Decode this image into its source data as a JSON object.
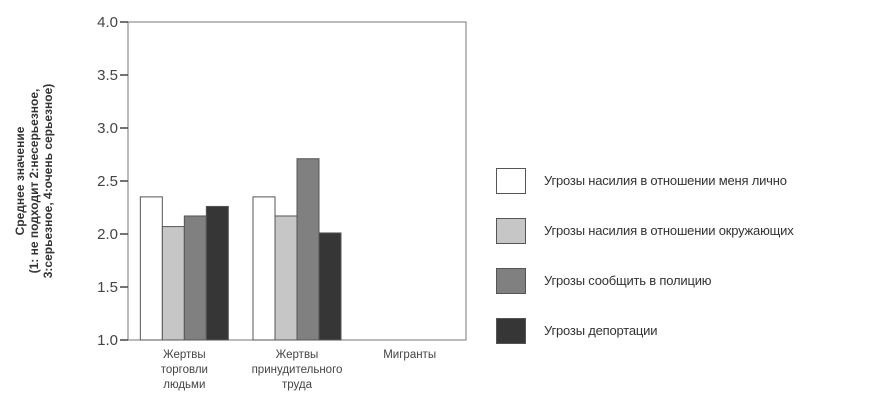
{
  "chart_data": {
    "type": "bar",
    "categories": [
      [
        "Жертвы",
        "торговли",
        "людьми"
      ],
      [
        "Жертвы",
        "принудительного",
        "труда"
      ],
      [
        "Мигранты"
      ]
    ],
    "series": [
      {
        "name": "Угрозы насилия в отношении меня лично",
        "color": "#ffffff",
        "values": [
          2.35,
          2.35,
          null
        ]
      },
      {
        "name": "Угрозы насилия в отношении окружающих",
        "color": "#c6c6c6",
        "values": [
          2.07,
          2.17,
          null
        ]
      },
      {
        "name": "Угрозы сообщить в полицию",
        "color": "#808080",
        "values": [
          2.17,
          2.71,
          null
        ]
      },
      {
        "name": "Угрозы депортации",
        "color": "#363636",
        "values": [
          2.26,
          2.01,
          null
        ]
      }
    ],
    "ylabel": [
      "Среднее значение",
      "(1: не подходит 2:несерьезное,",
      "3:серьезное, 4:очень серьезное)"
    ],
    "ylim": [
      1.0,
      4.0
    ],
    "yticks": [
      "1.0",
      "1.5",
      "2.0",
      "2.5",
      "3.0",
      "3.5",
      "4.0"
    ],
    "legend_position": "right",
    "grid": false
  }
}
